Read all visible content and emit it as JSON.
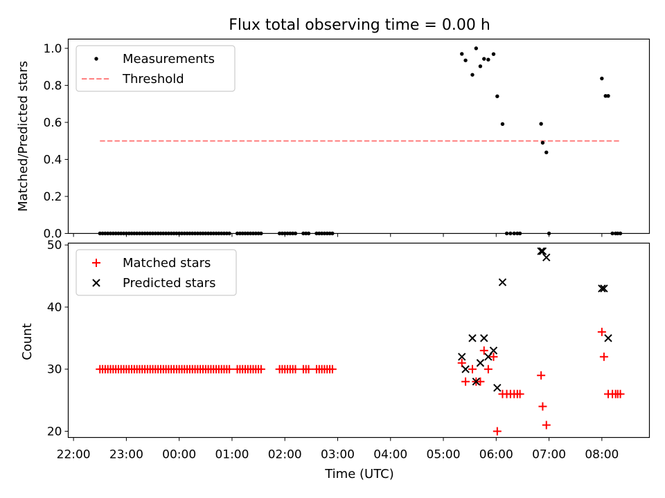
{
  "chart_data": [
    {
      "type": "scatter",
      "title": "Flux total observing time = 0.00 h",
      "xlabel": "",
      "ylabel": "Matched/Predicted stars",
      "ylim": [
        0,
        1.05
      ],
      "yticks": [
        "0.0",
        "0.2",
        "0.4",
        "0.6",
        "0.8",
        "1.0"
      ],
      "legend_position": "top-left",
      "colors": {
        "measurements": "#000000",
        "threshold": "#ff7f7f"
      },
      "series": [
        {
          "name": "Measurements",
          "marker": "dot",
          "x": [
            22.5,
            22.55,
            22.6,
            22.65,
            22.7,
            22.75,
            22.8,
            22.85,
            22.9,
            22.95,
            23.0,
            23.05,
            23.1,
            23.15,
            23.2,
            23.25,
            23.3,
            23.35,
            23.4,
            23.45,
            23.5,
            23.55,
            23.6,
            23.65,
            23.7,
            23.75,
            23.8,
            23.85,
            23.9,
            23.95,
            24.0,
            24.05,
            24.1,
            24.15,
            24.2,
            24.25,
            24.3,
            24.35,
            24.4,
            24.45,
            24.5,
            24.55,
            24.6,
            24.65,
            24.7,
            24.75,
            24.8,
            24.85,
            24.9,
            24.95,
            25.1,
            25.15,
            25.2,
            25.25,
            25.3,
            25.35,
            25.4,
            25.45,
            25.5,
            25.55,
            25.9,
            25.95,
            26.0,
            26.05,
            26.1,
            26.15,
            26.2,
            26.35,
            26.4,
            26.45,
            26.6,
            26.65,
            26.7,
            26.75,
            26.8,
            26.85,
            26.9,
            29.35,
            29.42,
            29.55,
            29.62,
            29.7,
            29.77,
            29.85,
            29.95,
            30.02,
            30.12,
            30.2,
            30.27,
            30.34,
            30.4,
            30.45,
            30.85,
            30.88,
            30.95,
            31.0,
            32.0,
            32.07,
            32.12,
            32.2,
            32.26,
            32.3,
            32.35
          ],
          "y": [
            0,
            0,
            0,
            0,
            0,
            0,
            0,
            0,
            0,
            0,
            0,
            0,
            0,
            0,
            0,
            0,
            0,
            0,
            0,
            0,
            0,
            0,
            0,
            0,
            0,
            0,
            0,
            0,
            0,
            0,
            0,
            0,
            0,
            0,
            0,
            0,
            0,
            0,
            0,
            0,
            0,
            0,
            0,
            0,
            0,
            0,
            0,
            0,
            0,
            0,
            0,
            0,
            0,
            0,
            0,
            0,
            0,
            0,
            0,
            0,
            0,
            0,
            0,
            0,
            0,
            0,
            0,
            0,
            0,
            0,
            0,
            0,
            0,
            0,
            0,
            0,
            0,
            0.97,
            0.935,
            0.857,
            1.0,
            0.903,
            0.943,
            0.939,
            0.969,
            0.741,
            0.591,
            0,
            0,
            0,
            0,
            0,
            0.592,
            0.49,
            0.438,
            0,
            0.837,
            0.743,
            0.743,
            0,
            0,
            0,
            0
          ]
        },
        {
          "name": "Threshold",
          "style": "dashed",
          "x": [
            22.5,
            32.35
          ],
          "y": [
            0.5,
            0.5
          ]
        }
      ]
    },
    {
      "type": "scatter",
      "xlabel": "Time (UTC)",
      "ylabel": "Count",
      "ylim": [
        19,
        50.3
      ],
      "yticks": [
        "20",
        "30",
        "40",
        "50"
      ],
      "xlim": [
        21.9,
        32.9
      ],
      "xticks": [
        "22:00",
        "23:00",
        "00:00",
        "01:00",
        "02:00",
        "03:00",
        "04:00",
        "05:00",
        "06:00",
        "07:00",
        "08:00"
      ],
      "xtick_values": [
        22,
        23,
        24,
        25,
        26,
        27,
        28,
        29,
        30,
        31,
        32
      ],
      "legend_position": "top-left",
      "colors": {
        "matched": "#ff0000",
        "predicted": "#000000"
      },
      "series": [
        {
          "name": "Matched stars",
          "marker": "plus",
          "x": [
            22.5,
            22.55,
            22.6,
            22.65,
            22.7,
            22.75,
            22.8,
            22.85,
            22.9,
            22.95,
            23.0,
            23.05,
            23.1,
            23.15,
            23.2,
            23.25,
            23.3,
            23.35,
            23.4,
            23.45,
            23.5,
            23.55,
            23.6,
            23.65,
            23.7,
            23.75,
            23.8,
            23.85,
            23.9,
            23.95,
            24.0,
            24.05,
            24.1,
            24.15,
            24.2,
            24.25,
            24.3,
            24.35,
            24.4,
            24.45,
            24.5,
            24.55,
            24.6,
            24.65,
            24.7,
            24.75,
            24.8,
            24.85,
            24.9,
            24.95,
            25.1,
            25.15,
            25.2,
            25.25,
            25.3,
            25.35,
            25.4,
            25.45,
            25.5,
            25.55,
            25.9,
            25.95,
            26.0,
            26.05,
            26.1,
            26.15,
            26.2,
            26.35,
            26.4,
            26.45,
            26.6,
            26.65,
            26.7,
            26.75,
            26.8,
            26.85,
            26.9,
            29.35,
            29.42,
            29.55,
            29.62,
            29.7,
            29.77,
            29.85,
            29.95,
            30.02,
            30.12,
            30.2,
            30.27,
            30.34,
            30.4,
            30.45,
            30.85,
            30.88,
            30.95,
            32.0,
            32.04,
            32.12,
            32.2,
            32.26,
            32.3,
            32.35
          ],
          "y": [
            30,
            30,
            30,
            30,
            30,
            30,
            30,
            30,
            30,
            30,
            30,
            30,
            30,
            30,
            30,
            30,
            30,
            30,
            30,
            30,
            30,
            30,
            30,
            30,
            30,
            30,
            30,
            30,
            30,
            30,
            30,
            30,
            30,
            30,
            30,
            30,
            30,
            30,
            30,
            30,
            30,
            30,
            30,
            30,
            30,
            30,
            30,
            30,
            30,
            30,
            30,
            30,
            30,
            30,
            30,
            30,
            30,
            30,
            30,
            30,
            30,
            30,
            30,
            30,
            30,
            30,
            30,
            30,
            30,
            30,
            30,
            30,
            30,
            30,
            30,
            30,
            30,
            31,
            28,
            30,
            28,
            28,
            33,
            30,
            32,
            20,
            26,
            26,
            26,
            26,
            26,
            26,
            29,
            24,
            21,
            36,
            32,
            26,
            26,
            26,
            26,
            26
          ]
        },
        {
          "name": "Predicted stars",
          "marker": "x",
          "x": [
            29.35,
            29.42,
            29.55,
            29.62,
            29.7,
            29.77,
            29.85,
            29.95,
            30.02,
            30.12,
            30.85,
            30.88,
            30.95,
            32.0,
            32.04,
            32.12
          ],
          "y": [
            32,
            30,
            35,
            28,
            31,
            35,
            32,
            33,
            27,
            44,
            49,
            49,
            48,
            43,
            43,
            35
          ]
        }
      ]
    }
  ]
}
